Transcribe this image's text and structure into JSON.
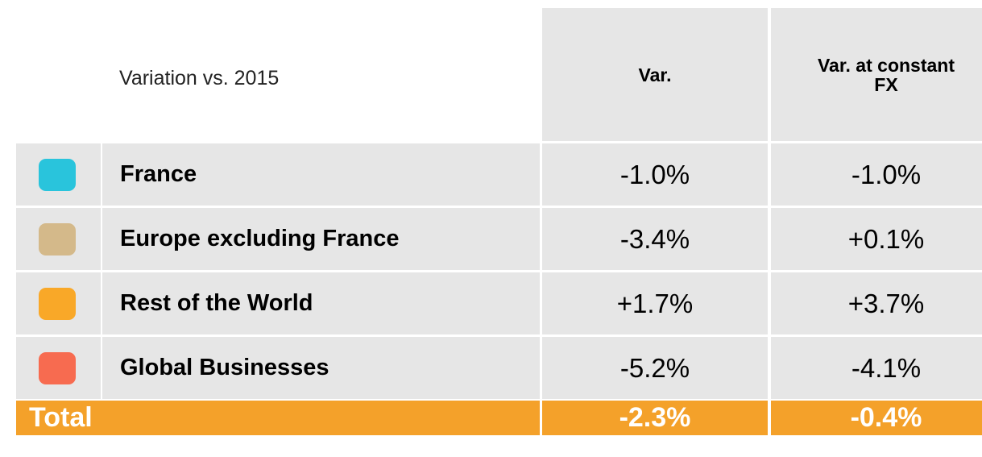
{
  "header": {
    "title": "Variation vs. 2015",
    "columns": [
      "Var.",
      "Var. at constant FX"
    ]
  },
  "rows": [
    {
      "name": "France",
      "var": "-1.0%",
      "fx": "-1.0%"
    },
    {
      "name": "Europe excluding France",
      "var": "-3.4%",
      "fx": "+0.1%"
    },
    {
      "name": "Rest of the World",
      "var": "+1.7%",
      "fx": "+3.7%"
    },
    {
      "name": "Global Businesses",
      "var": "-5.2%",
      "fx": "-4.1%"
    }
  ],
  "total": {
    "label": "Total",
    "var": "-2.3%",
    "fx": "-0.4%"
  }
}
